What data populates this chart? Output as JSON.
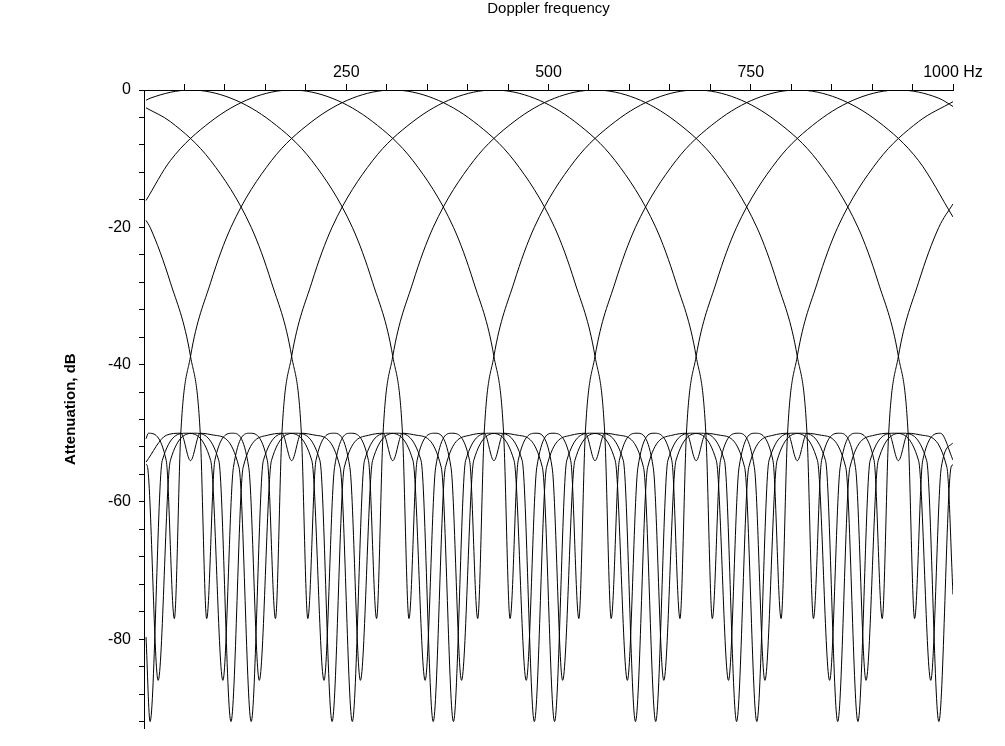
{
  "chart_data": {
    "type": "line",
    "xlabel": "Doppler frequency",
    "ylabel": "Attenuation, dB",
    "xlim": [
      0,
      1000
    ],
    "ylim": [
      -93,
      0
    ],
    "xticks": [
      {
        "value": 50,
        "label": null
      },
      {
        "value": 100,
        "label": null
      },
      {
        "value": 150,
        "label": null
      },
      {
        "value": 200,
        "label": null
      },
      250,
      {
        "value": 300,
        "label": null
      },
      {
        "value": 350,
        "label": null
      },
      {
        "value": 400,
        "label": null
      },
      {
        "value": 450,
        "label": null
      },
      500,
      {
        "value": 550,
        "label": null
      },
      {
        "value": 600,
        "label": null
      },
      {
        "value": 650,
        "label": null
      },
      {
        "value": 700,
        "label": null
      },
      750,
      {
        "value": 800,
        "label": null
      },
      {
        "value": 850,
        "label": null
      },
      {
        "value": 900,
        "label": null
      },
      {
        "value": 950,
        "label": null
      },
      {
        "value": 1000,
        "label": "1000 Hz"
      }
    ],
    "yticks": [
      0,
      {
        "value": -4,
        "label": null
      },
      {
        "value": -8,
        "label": null
      },
      {
        "value": -12,
        "label": null
      },
      {
        "value": -16,
        "label": null
      },
      -20,
      {
        "value": -24,
        "label": null
      },
      {
        "value": -28,
        "label": null
      },
      {
        "value": -32,
        "label": null
      },
      {
        "value": -36,
        "label": null
      },
      -40,
      {
        "value": -44,
        "label": null
      },
      {
        "value": -48,
        "label": null
      },
      {
        "value": -52,
        "label": null
      },
      {
        "value": -56,
        "label": null
      },
      -60,
      {
        "value": -64,
        "label": null
      },
      {
        "value": -68,
        "label": null
      },
      {
        "value": -72,
        "label": null
      },
      {
        "value": -76,
        "label": null
      },
      -80,
      {
        "value": -84,
        "label": null
      },
      {
        "value": -88,
        "label": null
      },
      {
        "value": -92,
        "label": null
      }
    ],
    "grid": false,
    "legend": false,
    "marker": "none",
    "line_style": "solid",
    "series": [
      {
        "color": "#000000",
        "x": [
          2.5,
          7.5,
          57.5,
          107.5,
          157.5,
          207.5,
          257.5,
          282.5,
          307.5,
          319.5,
          327.5,
          337.5,
          359.5,
          379.5,
          392.5,
          407.5,
          437.5,
          467.5,
          482.5,
          497.5,
          527.5,
          545.5,
          557.5,
          569.5,
          587.5,
          617.5,
          632.5,
          647.5,
          677.5,
          707.5,
          722.5,
          735.5,
          755.5,
          777.5,
          787.5,
          795.5,
          807.5,
          832.5,
          857.5,
          907.5,
          957.5,
          1000
        ],
        "values": [
          -1.5,
          -1.2,
          0,
          -1.2,
          -4.6,
          -10.3,
          -20,
          -28,
          -38.8,
          -50,
          -77,
          -54,
          -50,
          -55,
          -86,
          -54,
          -50,
          -54,
          -92,
          -55,
          -50.3,
          -50,
          -54,
          -50,
          -50.3,
          -55,
          -92,
          -54,
          -50,
          -54,
          -86,
          -55,
          -50,
          -54,
          -77,
          -50,
          -38.8,
          -28,
          -20,
          -10.3,
          -4.6,
          -1.7
        ]
      },
      {
        "color": "#000000",
        "x": [
          2.5,
          32.5,
          82.5,
          132.5,
          182.5,
          232.5,
          282.5,
          332.5,
          382.5,
          407.5,
          432.5,
          444.5,
          452.5,
          462.5,
          484.5,
          504.5,
          517.5,
          532.5,
          562.5,
          592.5,
          607.5,
          622.5,
          652.5,
          670.5,
          682.5,
          694.5,
          712.5,
          742.5,
          757.5,
          772.5,
          802.5,
          832.5,
          847.5,
          860.5,
          880.5,
          902.5,
          912.5,
          920.5,
          932.5,
          957.5,
          982.5,
          1000
        ],
        "values": [
          -16.1,
          -10.3,
          -4.6,
          -1.2,
          0,
          -1.2,
          -4.6,
          -10.3,
          -20,
          -28,
          -38.8,
          -50,
          -77,
          -54,
          -50,
          -55,
          -86,
          -54,
          -50,
          -54,
          -92,
          -55,
          -50.3,
          -50,
          -54,
          -50,
          -50.3,
          -55,
          -92,
          -54,
          -50,
          -54,
          -86,
          -55,
          -50,
          -54,
          -77,
          -50,
          -38.8,
          -28,
          -20,
          -16.6
        ]
      },
      {
        "color": "#000000",
        "x": [
          2.5,
          5.5,
          27.5,
          37.5,
          45.5,
          57.5,
          82.5,
          107.5,
          157.5,
          207.5,
          257.5,
          307.5,
          357.5,
          407.5,
          457.5,
          507.5,
          532.5,
          557.5,
          569.5,
          577.5,
          587.5,
          609.5,
          629.5,
          642.5,
          657.5,
          687.5,
          717.5,
          732.5,
          747.5,
          777.5,
          795.5,
          807.5,
          819.5,
          837.5,
          867.5,
          882.5,
          897.5,
          927.5,
          957.5,
          972.5,
          985.5,
          1000
        ],
        "values": [
          -50.8,
          -50,
          -54,
          -77,
          -50,
          -38.8,
          -28,
          -20,
          -10.3,
          -4.6,
          -1.2,
          0,
          -1.2,
          -4.6,
          -10.3,
          -20,
          -28,
          -38.8,
          -50,
          -77,
          -54,
          -50,
          -55,
          -86,
          -54,
          -50,
          -54,
          -92,
          -55,
          -50.3,
          -50,
          -54,
          -50,
          -50.3,
          -55,
          -92,
          -54,
          -50,
          -54,
          -86,
          -55,
          -51.4
        ]
      },
      {
        "color": "#000000",
        "x": [
          2.5,
          7.5,
          22.5,
          52.5,
          82.5,
          97.5,
          110.5,
          130.5,
          152.5,
          162.5,
          170.5,
          182.5,
          207.5,
          232.5,
          282.5,
          332.5,
          382.5,
          432.5,
          482.5,
          532.5,
          582.5,
          632.5,
          657.5,
          682.5,
          694.5,
          702.5,
          712.5,
          734.5,
          754.5,
          767.5,
          782.5,
          812.5,
          842.5,
          857.5,
          872.5,
          902.5,
          920.5,
          932.5,
          944.5,
          962.5,
          992.5,
          1000
        ],
        "values": [
          -79.7,
          -92,
          -54,
          -50,
          -54,
          -86,
          -55,
          -50,
          -54,
          -77,
          -50,
          -38.8,
          -28,
          -20,
          -10.3,
          -4.6,
          -1.2,
          0,
          -1.2,
          -4.6,
          -10.3,
          -20,
          -28,
          -38.8,
          -50,
          -77,
          -54,
          -50,
          -55,
          -86,
          -54,
          -50,
          -54,
          -92,
          -55,
          -50.3,
          -50,
          -54,
          -50,
          -50.3,
          -55,
          -73.5
        ]
      },
      {
        "color": "#000000",
        "x": [
          2.5,
          27.5,
          45.5,
          57.5,
          69.5,
          87.5,
          117.5,
          132.5,
          147.5,
          177.5,
          207.5,
          222.5,
          235.5,
          255.5,
          277.5,
          287.5,
          295.5,
          307.5,
          332.5,
          357.5,
          407.5,
          457.5,
          507.5,
          557.5,
          607.5,
          657.5,
          707.5,
          757.5,
          782.5,
          807.5,
          819.5,
          827.5,
          837.5,
          859.5,
          879.5,
          892.5,
          907.5,
          937.5,
          967.5,
          982.5,
          997.5,
          1000
        ],
        "values": [
          -54.2,
          -50.3,
          -50,
          -54,
          -50,
          -50.3,
          -55,
          -92,
          -54,
          -50,
          -54,
          -86,
          -55,
          -50,
          -54,
          -77,
          -50,
          -38.8,
          -28,
          -20,
          -10.3,
          -4.6,
          -1.2,
          0,
          -1.2,
          -4.6,
          -10.3,
          -20,
          -28,
          -38.8,
          -50,
          -77,
          -54,
          -50,
          -55,
          -86,
          -54,
          -50,
          -54,
          -92,
          -55,
          -54.6
        ]
      },
      {
        "color": "#000000",
        "x": [
          2.5,
          4.5,
          17.5,
          32.5,
          62.5,
          92.5,
          107.5,
          122.5,
          152.5,
          170.5,
          182.5,
          194.5,
          212.5,
          242.5,
          257.5,
          272.5,
          302.5,
          332.5,
          347.5,
          360.5,
          380.5,
          402.5,
          412.5,
          420.5,
          432.5,
          457.5,
          482.5,
          532.5,
          582.5,
          632.5,
          682.5,
          732.5,
          782.5,
          832.5,
          882.5,
          907.5,
          932.5,
          944.5,
          952.5,
          962.5,
          984.5,
          1000
        ],
        "values": [
          -54.5,
          -55,
          -86,
          -54,
          -50,
          -54,
          -92,
          -55,
          -50.3,
          -50,
          -54,
          -50,
          -50.3,
          -55,
          -92,
          -54,
          -50,
          -54,
          -86,
          -55,
          -50,
          -54,
          -77,
          -50,
          -38.8,
          -28,
          -20,
          -10.3,
          -4.6,
          -1.2,
          0,
          -1.2,
          -4.6,
          -10.3,
          -20,
          -28,
          -38.8,
          -50,
          -77,
          -54,
          -50,
          -53.9
        ]
      },
      {
        "color": "#000000",
        "x": [
          2.5,
          7.5,
          32.5,
          57.5,
          69.5,
          77.5,
          87.5,
          109.5,
          129.5,
          142.5,
          157.5,
          187.5,
          217.5,
          232.5,
          247.5,
          277.5,
          295.5,
          307.5,
          319.5,
          337.5,
          367.5,
          382.5,
          397.5,
          427.5,
          457.5,
          472.5,
          485.5,
          505.5,
          527.5,
          537.5,
          545.5,
          557.5,
          582.5,
          607.5,
          657.5,
          707.5,
          757.5,
          807.5,
          857.5,
          907.5,
          957.5,
          1000
        ],
        "values": [
          -19,
          -20,
          -28,
          -38.8,
          -50,
          -77,
          -54,
          -50,
          -55,
          -86,
          -54,
          -50,
          -54,
          -92,
          -55,
          -50.3,
          -50,
          -54,
          -50,
          -50.3,
          -55,
          -92,
          -54,
          -50,
          -54,
          -86,
          -55,
          -50,
          -54,
          -77,
          -50,
          -38.8,
          -28,
          -20,
          -10.3,
          -4.6,
          -1.2,
          0,
          -1.2,
          -4.6,
          -10.3,
          -18.5
        ]
      },
      {
        "color": "#000000",
        "x": [
          2.5,
          32.5,
          82.5,
          132.5,
          157.5,
          182.5,
          194.5,
          202.5,
          212.5,
          234.5,
          254.5,
          267.5,
          282.5,
          312.5,
          342.5,
          357.5,
          372.5,
          402.5,
          420.5,
          432.5,
          444.5,
          462.5,
          492.5,
          507.5,
          522.5,
          552.5,
          582.5,
          597.5,
          610.5,
          630.5,
          652.5,
          662.5,
          670.5,
          682.5,
          707.5,
          732.5,
          782.5,
          832.5,
          882.5,
          932.5,
          982.5,
          1000
        ],
        "values": [
          -2.6,
          -4.6,
          -10.3,
          -20,
          -28,
          -38.8,
          -50,
          -77,
          -54,
          -50,
          -55,
          -86,
          -54,
          -50,
          -54,
          -92,
          -55,
          -50.3,
          -50,
          -54,
          -50,
          -50.3,
          -55,
          -92,
          -54,
          -50,
          -54,
          -86,
          -55,
          -50,
          -54,
          -77,
          -50,
          -38.8,
          -28,
          -20,
          -10.3,
          -4.6,
          -1.2,
          0,
          -1.2,
          -2.4
        ]
      }
    ]
  }
}
